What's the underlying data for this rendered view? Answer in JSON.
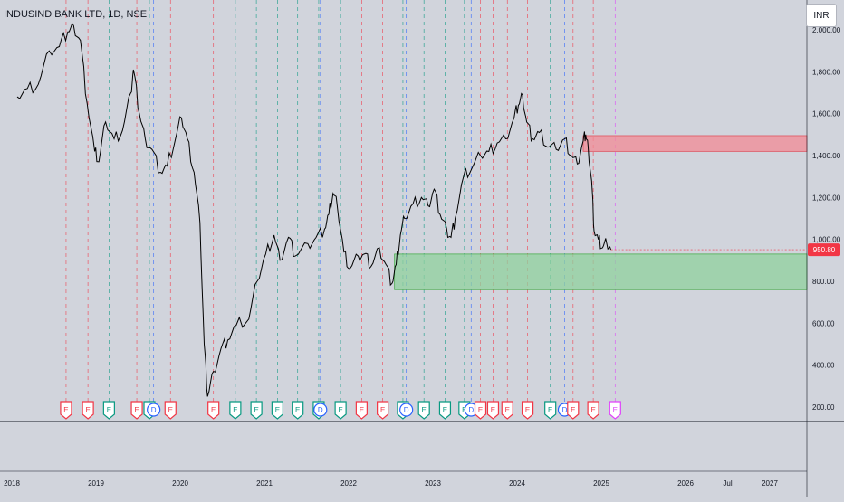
{
  "header": {
    "title": "INDUSIND BANK LTD, 1D, NSE",
    "currency": "INR"
  },
  "colors": {
    "background": "#d1d4dc",
    "price_line": "#000000",
    "resistance_zone": "#f28b95",
    "support_zone": "#8fd19e",
    "price_label": "#f23645",
    "earnings_red": "#f23645",
    "earnings_green": "#089981",
    "dividend_blue": "#2962ff",
    "event_purple": "#e040fb"
  },
  "chart_data": {
    "type": "line",
    "title": "INDUSIND BANK LTD, 1D, NSE",
    "ylim": [
      200,
      2000
    ],
    "yticks": [
      "200.00",
      "400.00",
      "600.00",
      "800.00",
      "1,000.00",
      "1,200.00",
      "1,400.00",
      "1,600.00",
      "1,800.00",
      "2,000.00"
    ],
    "xticks": [
      "2018",
      "2019",
      "2020",
      "2021",
      "2022",
      "2023",
      "2024",
      "2025",
      "2026",
      "Jul",
      "2027"
    ],
    "last_price": "950.80",
    "series": [
      {
        "points": [
          [
            2018.0,
            1680
          ],
          [
            2018.12,
            1720
          ],
          [
            2018.25,
            1740
          ],
          [
            2018.38,
            1900
          ],
          [
            2018.5,
            1920
          ],
          [
            2018.6,
            1990
          ],
          [
            2018.67,
            2020
          ],
          [
            2018.75,
            1950
          ],
          [
            2018.83,
            1650
          ],
          [
            2018.92,
            1420
          ],
          [
            2018.97,
            1370
          ],
          [
            2019.05,
            1560
          ],
          [
            2019.15,
            1480
          ],
          [
            2019.25,
            1520
          ],
          [
            2019.35,
            1700
          ],
          [
            2019.38,
            1810
          ],
          [
            2019.45,
            1600
          ],
          [
            2019.52,
            1480
          ],
          [
            2019.6,
            1430
          ],
          [
            2019.7,
            1320
          ],
          [
            2019.78,
            1350
          ],
          [
            2019.88,
            1480
          ],
          [
            2019.95,
            1580
          ],
          [
            2020.02,
            1480
          ],
          [
            2020.1,
            1320
          ],
          [
            2020.17,
            1080
          ],
          [
            2020.22,
            500
          ],
          [
            2020.26,
            250
          ],
          [
            2020.33,
            370
          ],
          [
            2020.42,
            480
          ],
          [
            2020.5,
            520
          ],
          [
            2020.6,
            590
          ],
          [
            2020.75,
            620
          ],
          [
            2020.85,
            800
          ],
          [
            2020.95,
            930
          ],
          [
            2021.05,
            1020
          ],
          [
            2021.12,
            900
          ],
          [
            2021.22,
            1010
          ],
          [
            2021.3,
            920
          ],
          [
            2021.45,
            980
          ],
          [
            2021.55,
            1010
          ],
          [
            2021.65,
            1050
          ],
          [
            2021.7,
            1120
          ],
          [
            2021.75,
            1220
          ],
          [
            2021.8,
            1160
          ],
          [
            2021.88,
            940
          ],
          [
            2021.95,
            860
          ],
          [
            2022.05,
            920
          ],
          [
            2022.12,
            930
          ],
          [
            2022.2,
            870
          ],
          [
            2022.3,
            960
          ],
          [
            2022.38,
            880
          ],
          [
            2022.45,
            790
          ],
          [
            2022.5,
            880
          ],
          [
            2022.55,
            1020
          ],
          [
            2022.6,
            1100
          ],
          [
            2022.7,
            1170
          ],
          [
            2022.8,
            1200
          ],
          [
            2022.88,
            1160
          ],
          [
            2022.95,
            1240
          ],
          [
            2023.02,
            1120
          ],
          [
            2023.1,
            1050
          ],
          [
            2023.15,
            1010
          ],
          [
            2023.2,
            1100
          ],
          [
            2023.3,
            1300
          ],
          [
            2023.4,
            1340
          ],
          [
            2023.5,
            1400
          ],
          [
            2023.6,
            1420
          ],
          [
            2023.7,
            1460
          ],
          [
            2023.8,
            1480
          ],
          [
            2023.9,
            1580
          ],
          [
            2023.95,
            1640
          ],
          [
            2024.0,
            1690
          ],
          [
            2024.05,
            1560
          ],
          [
            2024.12,
            1480
          ],
          [
            2024.2,
            1510
          ],
          [
            2024.3,
            1440
          ],
          [
            2024.4,
            1430
          ],
          [
            2024.5,
            1480
          ],
          [
            2024.58,
            1400
          ],
          [
            2024.65,
            1360
          ],
          [
            2024.72,
            1470
          ],
          [
            2024.75,
            1500
          ],
          [
            2024.78,
            1440
          ],
          [
            2024.82,
            1280
          ],
          [
            2024.85,
            1040
          ],
          [
            2024.9,
            1000
          ],
          [
            2024.95,
            960
          ],
          [
            2025.0,
            980
          ],
          [
            2025.05,
            950.8
          ]
        ]
      }
    ],
    "zones": [
      {
        "name": "resistance",
        "y0": 1420,
        "y1": 1495,
        "x0": 2024.72
      },
      {
        "name": "support",
        "y0": 760,
        "y1": 930,
        "x0": 2022.48
      }
    ],
    "events": [
      {
        "x": 2018.58,
        "type": "E",
        "color": "red"
      },
      {
        "x": 2018.84,
        "type": "E",
        "color": "red"
      },
      {
        "x": 2019.09,
        "type": "E",
        "color": "green"
      },
      {
        "x": 2019.42,
        "type": "E",
        "color": "red"
      },
      {
        "x": 2019.57,
        "type": "E",
        "color": "green"
      },
      {
        "x": 2019.62,
        "type": "D",
        "color": "blue"
      },
      {
        "x": 2019.82,
        "type": "E",
        "color": "red"
      },
      {
        "x": 2020.33,
        "type": "E",
        "color": "red"
      },
      {
        "x": 2020.59,
        "type": "E",
        "color": "green"
      },
      {
        "x": 2020.84,
        "type": "E",
        "color": "green"
      },
      {
        "x": 2021.09,
        "type": "E",
        "color": "green"
      },
      {
        "x": 2021.33,
        "type": "E",
        "color": "green"
      },
      {
        "x": 2021.58,
        "type": "E",
        "color": "green"
      },
      {
        "x": 2021.6,
        "type": "D",
        "color": "blue"
      },
      {
        "x": 2021.84,
        "type": "E",
        "color": "green"
      },
      {
        "x": 2022.09,
        "type": "E",
        "color": "red"
      },
      {
        "x": 2022.34,
        "type": "E",
        "color": "red"
      },
      {
        "x": 2022.58,
        "type": "E",
        "color": "green"
      },
      {
        "x": 2022.62,
        "type": "D",
        "color": "blue"
      },
      {
        "x": 2022.83,
        "type": "E",
        "color": "green"
      },
      {
        "x": 2023.08,
        "type": "E",
        "color": "green"
      },
      {
        "x": 2023.31,
        "type": "E",
        "color": "green"
      },
      {
        "x": 2023.39,
        "type": "D",
        "color": "blue"
      },
      {
        "x": 2023.5,
        "type": "E",
        "color": "red"
      },
      {
        "x": 2023.65,
        "type": "E",
        "color": "red"
      },
      {
        "x": 2023.82,
        "type": "E",
        "color": "red"
      },
      {
        "x": 2024.06,
        "type": "E",
        "color": "red"
      },
      {
        "x": 2024.33,
        "type": "E",
        "color": "green"
      },
      {
        "x": 2024.5,
        "type": "D",
        "color": "blue"
      },
      {
        "x": 2024.6,
        "type": "E",
        "color": "red"
      },
      {
        "x": 2024.84,
        "type": "E",
        "color": "red"
      },
      {
        "x": 2025.1,
        "type": "E",
        "color": "purple"
      }
    ]
  }
}
